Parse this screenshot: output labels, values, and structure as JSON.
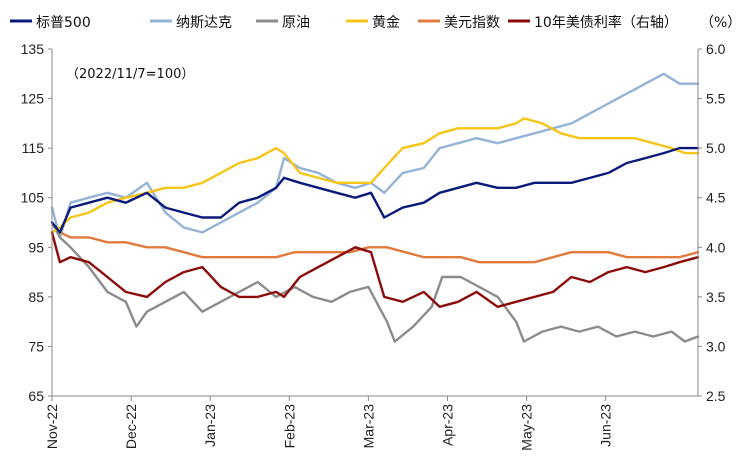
{
  "chart_data": {
    "type": "line",
    "annotation": "（2022/11/7=100）",
    "legend_position": "top",
    "grid": false,
    "x": {
      "range": [
        "2022-11-07",
        "2023-07-10"
      ],
      "ticks": [
        {
          "label": "Nov-22",
          "date": "2022-11-07"
        },
        {
          "label": "Dec-22",
          "date": "2022-12-07"
        },
        {
          "label": "Jan-23",
          "date": "2023-01-06"
        },
        {
          "label": "Feb-23",
          "date": "2023-02-05"
        },
        {
          "label": "Mar-23",
          "date": "2023-03-07"
        },
        {
          "label": "Apr-23",
          "date": "2023-04-06"
        },
        {
          "label": "May-23",
          "date": "2023-05-06"
        },
        {
          "label": "Jun-23",
          "date": "2023-06-05"
        }
      ]
    },
    "y_left": {
      "min": 65,
      "max": 135,
      "ticks": [
        "135",
        "125",
        "115",
        "105",
        "95",
        "85",
        "75",
        "65"
      ]
    },
    "y_right": {
      "label": "（%）",
      "min": 2.5,
      "max": 6.0,
      "ticks": [
        "6.0",
        "5.5",
        "5.0",
        "4.5",
        "4.0",
        "3.5",
        "3.0",
        "2.5"
      ]
    },
    "series": [
      {
        "name": "标普500",
        "color": "#0a1a7a",
        "axis": "left",
        "points": [
          [
            "2022-11-07",
            100
          ],
          [
            "2022-11-10",
            98
          ],
          [
            "2022-11-14",
            103
          ],
          [
            "2022-11-21",
            104
          ],
          [
            "2022-11-28",
            105
          ],
          [
            "2022-12-05",
            104
          ],
          [
            "2022-12-13",
            106
          ],
          [
            "2022-12-20",
            103
          ],
          [
            "2022-12-27",
            102
          ],
          [
            "2023-01-03",
            101
          ],
          [
            "2023-01-10",
            101
          ],
          [
            "2023-01-17",
            104
          ],
          [
            "2023-01-24",
            105
          ],
          [
            "2023-01-31",
            107
          ],
          [
            "2023-02-03",
            109
          ],
          [
            "2023-02-09",
            108
          ],
          [
            "2023-02-16",
            107
          ],
          [
            "2023-02-23",
            106
          ],
          [
            "2023-03-02",
            105
          ],
          [
            "2023-03-08",
            106
          ],
          [
            "2023-03-13",
            101
          ],
          [
            "2023-03-20",
            103
          ],
          [
            "2023-03-28",
            104
          ],
          [
            "2023-04-03",
            106
          ],
          [
            "2023-04-10",
            107
          ],
          [
            "2023-04-17",
            108
          ],
          [
            "2023-04-25",
            107
          ],
          [
            "2023-05-02",
            107
          ],
          [
            "2023-05-09",
            108
          ],
          [
            "2023-05-16",
            108
          ],
          [
            "2023-05-23",
            108
          ],
          [
            "2023-05-30",
            109
          ],
          [
            "2023-06-06",
            110
          ],
          [
            "2023-06-13",
            112
          ],
          [
            "2023-06-20",
            113
          ],
          [
            "2023-06-27",
            114
          ],
          [
            "2023-07-03",
            115
          ],
          [
            "2023-07-10",
            115
          ]
        ]
      },
      {
        "name": "纳斯达克",
        "color": "#94b3d6",
        "axis": "left",
        "points": [
          [
            "2022-11-07",
            103
          ],
          [
            "2022-11-10",
            97
          ],
          [
            "2022-11-14",
            104
          ],
          [
            "2022-11-21",
            105
          ],
          [
            "2022-11-28",
            106
          ],
          [
            "2022-12-05",
            105
          ],
          [
            "2022-12-13",
            108
          ],
          [
            "2022-12-20",
            102
          ],
          [
            "2022-12-27",
            99
          ],
          [
            "2023-01-03",
            98
          ],
          [
            "2023-01-10",
            100
          ],
          [
            "2023-01-17",
            102
          ],
          [
            "2023-01-24",
            104
          ],
          [
            "2023-01-31",
            107
          ],
          [
            "2023-02-03",
            113
          ],
          [
            "2023-02-09",
            111
          ],
          [
            "2023-02-16",
            110
          ],
          [
            "2023-02-23",
            108
          ],
          [
            "2023-03-02",
            107
          ],
          [
            "2023-03-08",
            108
          ],
          [
            "2023-03-13",
            106
          ],
          [
            "2023-03-20",
            110
          ],
          [
            "2023-03-28",
            111
          ],
          [
            "2023-04-03",
            115
          ],
          [
            "2023-04-10",
            116
          ],
          [
            "2023-04-17",
            117
          ],
          [
            "2023-04-25",
            116
          ],
          [
            "2023-05-02",
            117
          ],
          [
            "2023-05-09",
            118
          ],
          [
            "2023-05-16",
            119
          ],
          [
            "2023-05-23",
            120
          ],
          [
            "2023-05-30",
            122
          ],
          [
            "2023-06-06",
            124
          ],
          [
            "2023-06-13",
            126
          ],
          [
            "2023-06-20",
            128
          ],
          [
            "2023-06-27",
            130
          ],
          [
            "2023-07-03",
            128
          ],
          [
            "2023-07-10",
            128
          ]
        ]
      },
      {
        "name": "原油",
        "color": "#8c8c8c",
        "axis": "left",
        "points": [
          [
            "2022-11-07",
            100
          ],
          [
            "2022-11-10",
            97
          ],
          [
            "2022-11-14",
            95
          ],
          [
            "2022-11-21",
            91
          ],
          [
            "2022-11-28",
            86
          ],
          [
            "2022-12-05",
            84
          ],
          [
            "2022-12-09",
            79
          ],
          [
            "2022-12-13",
            82
          ],
          [
            "2022-12-20",
            84
          ],
          [
            "2022-12-27",
            86
          ],
          [
            "2023-01-03",
            82
          ],
          [
            "2023-01-10",
            84
          ],
          [
            "2023-01-17",
            86
          ],
          [
            "2023-01-24",
            88
          ],
          [
            "2023-01-31",
            85
          ],
          [
            "2023-02-07",
            87
          ],
          [
            "2023-02-14",
            85
          ],
          [
            "2023-02-21",
            84
          ],
          [
            "2023-02-28",
            86
          ],
          [
            "2023-03-07",
            87
          ],
          [
            "2023-03-14",
            80
          ],
          [
            "2023-03-17",
            76
          ],
          [
            "2023-03-24",
            79
          ],
          [
            "2023-03-31",
            83
          ],
          [
            "2023-04-04",
            89
          ],
          [
            "2023-04-11",
            89
          ],
          [
            "2023-04-18",
            87
          ],
          [
            "2023-04-25",
            85
          ],
          [
            "2023-05-02",
            80
          ],
          [
            "2023-05-05",
            76
          ],
          [
            "2023-05-12",
            78
          ],
          [
            "2023-05-19",
            79
          ],
          [
            "2023-05-26",
            78
          ],
          [
            "2023-06-02",
            79
          ],
          [
            "2023-06-09",
            77
          ],
          [
            "2023-06-16",
            78
          ],
          [
            "2023-06-23",
            77
          ],
          [
            "2023-06-30",
            78
          ],
          [
            "2023-07-05",
            76
          ],
          [
            "2023-07-10",
            77
          ]
        ]
      },
      {
        "name": "黄金",
        "color": "#f5c518",
        "axis": "left",
        "points": [
          [
            "2022-11-07",
            98
          ],
          [
            "2022-11-10",
            99
          ],
          [
            "2022-11-14",
            101
          ],
          [
            "2022-11-21",
            102
          ],
          [
            "2022-11-28",
            104
          ],
          [
            "2022-12-05",
            105
          ],
          [
            "2022-12-13",
            106
          ],
          [
            "2022-12-20",
            107
          ],
          [
            "2022-12-27",
            107
          ],
          [
            "2023-01-03",
            108
          ],
          [
            "2023-01-10",
            110
          ],
          [
            "2023-01-17",
            112
          ],
          [
            "2023-01-24",
            113
          ],
          [
            "2023-01-31",
            115
          ],
          [
            "2023-02-03",
            114
          ],
          [
            "2023-02-09",
            110
          ],
          [
            "2023-02-16",
            109
          ],
          [
            "2023-02-23",
            108
          ],
          [
            "2023-03-02",
            108
          ],
          [
            "2023-03-08",
            108
          ],
          [
            "2023-03-13",
            111
          ],
          [
            "2023-03-20",
            115
          ],
          [
            "2023-03-28",
            116
          ],
          [
            "2023-04-03",
            118
          ],
          [
            "2023-04-10",
            119
          ],
          [
            "2023-04-17",
            119
          ],
          [
            "2023-04-25",
            119
          ],
          [
            "2023-05-02",
            120
          ],
          [
            "2023-05-05",
            121
          ],
          [
            "2023-05-12",
            120
          ],
          [
            "2023-05-19",
            118
          ],
          [
            "2023-05-26",
            117
          ],
          [
            "2023-06-02",
            117
          ],
          [
            "2023-06-09",
            117
          ],
          [
            "2023-06-16",
            117
          ],
          [
            "2023-06-23",
            116
          ],
          [
            "2023-06-30",
            115
          ],
          [
            "2023-07-05",
            114
          ],
          [
            "2023-07-10",
            114
          ]
        ]
      },
      {
        "name": "美元指数",
        "color": "#e07b3c",
        "axis": "left",
        "points": [
          [
            "2022-11-07",
            100
          ],
          [
            "2022-11-10",
            98
          ],
          [
            "2022-11-14",
            97
          ],
          [
            "2022-11-21",
            97
          ],
          [
            "2022-11-28",
            96
          ],
          [
            "2022-12-05",
            96
          ],
          [
            "2022-12-13",
            95
          ],
          [
            "2022-12-20",
            95
          ],
          [
            "2022-12-27",
            94
          ],
          [
            "2023-01-03",
            93
          ],
          [
            "2023-01-10",
            93
          ],
          [
            "2023-01-17",
            93
          ],
          [
            "2023-01-24",
            93
          ],
          [
            "2023-01-31",
            93
          ],
          [
            "2023-02-07",
            94
          ],
          [
            "2023-02-14",
            94
          ],
          [
            "2023-02-21",
            94
          ],
          [
            "2023-02-28",
            94
          ],
          [
            "2023-03-07",
            95
          ],
          [
            "2023-03-14",
            95
          ],
          [
            "2023-03-21",
            94
          ],
          [
            "2023-03-28",
            93
          ],
          [
            "2023-04-04",
            93
          ],
          [
            "2023-04-11",
            93
          ],
          [
            "2023-04-18",
            92
          ],
          [
            "2023-04-25",
            92
          ],
          [
            "2023-05-02",
            92
          ],
          [
            "2023-05-09",
            92
          ],
          [
            "2023-05-16",
            93
          ],
          [
            "2023-05-23",
            94
          ],
          [
            "2023-05-30",
            94
          ],
          [
            "2023-06-06",
            94
          ],
          [
            "2023-06-13",
            93
          ],
          [
            "2023-06-20",
            93
          ],
          [
            "2023-06-27",
            93
          ],
          [
            "2023-07-03",
            93
          ],
          [
            "2023-07-10",
            94
          ]
        ]
      },
      {
        "name": "10年美债利率（右轴）",
        "color": "#8b0a0a",
        "axis": "right",
        "points": [
          [
            "2022-11-07",
            4.15
          ],
          [
            "2022-11-10",
            3.85
          ],
          [
            "2022-11-14",
            3.9
          ],
          [
            "2022-11-21",
            3.85
          ],
          [
            "2022-11-28",
            3.7
          ],
          [
            "2022-12-05",
            3.55
          ],
          [
            "2022-12-13",
            3.5
          ],
          [
            "2022-12-20",
            3.65
          ],
          [
            "2022-12-27",
            3.75
          ],
          [
            "2023-01-03",
            3.8
          ],
          [
            "2023-01-10",
            3.6
          ],
          [
            "2023-01-17",
            3.5
          ],
          [
            "2023-01-24",
            3.5
          ],
          [
            "2023-01-31",
            3.55
          ],
          [
            "2023-02-03",
            3.5
          ],
          [
            "2023-02-09",
            3.7
          ],
          [
            "2023-02-16",
            3.8
          ],
          [
            "2023-02-23",
            3.9
          ],
          [
            "2023-03-02",
            4.0
          ],
          [
            "2023-03-08",
            3.95
          ],
          [
            "2023-03-13",
            3.5
          ],
          [
            "2023-03-20",
            3.45
          ],
          [
            "2023-03-28",
            3.55
          ],
          [
            "2023-04-03",
            3.4
          ],
          [
            "2023-04-10",
            3.45
          ],
          [
            "2023-04-17",
            3.55
          ],
          [
            "2023-04-25",
            3.4
          ],
          [
            "2023-05-02",
            3.45
          ],
          [
            "2023-05-09",
            3.5
          ],
          [
            "2023-05-16",
            3.55
          ],
          [
            "2023-05-23",
            3.7
          ],
          [
            "2023-05-30",
            3.65
          ],
          [
            "2023-06-06",
            3.75
          ],
          [
            "2023-06-13",
            3.8
          ],
          [
            "2023-06-20",
            3.75
          ],
          [
            "2023-06-27",
            3.8
          ],
          [
            "2023-07-03",
            3.85
          ],
          [
            "2023-07-10",
            3.9
          ]
        ]
      }
    ]
  }
}
